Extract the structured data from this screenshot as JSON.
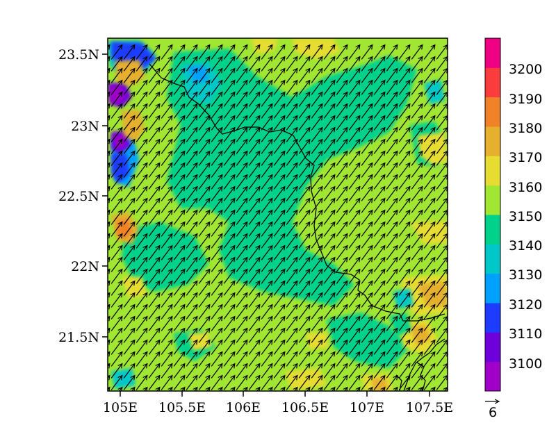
{
  "map": {
    "x_axis": {
      "ticks": [
        "105E",
        "105.5E",
        "106E",
        "106.5E",
        "107E",
        "107.5E"
      ]
    },
    "y_axis": {
      "ticks": [
        "23.5N",
        "23N",
        "22.5N",
        "22N",
        "21.5N"
      ]
    },
    "colorbar": {
      "labels": [
        "3100",
        "3110",
        "3120",
        "3130",
        "3140",
        "3150",
        "3160",
        "3170",
        "3180",
        "3190",
        "3200"
      ],
      "colors": [
        "#a000c8",
        "#6e00dc",
        "#1e3cff",
        "#00a0ff",
        "#00c8c8",
        "#00d28c",
        "#a0e632",
        "#e6dc32",
        "#e6af2d",
        "#f08228",
        "#fa3c3c",
        "#f00082"
      ]
    },
    "vector_reference": {
      "label": "6"
    },
    "background_color": "#a0e632",
    "arrow_direction": "southwest-to-northeast"
  }
}
